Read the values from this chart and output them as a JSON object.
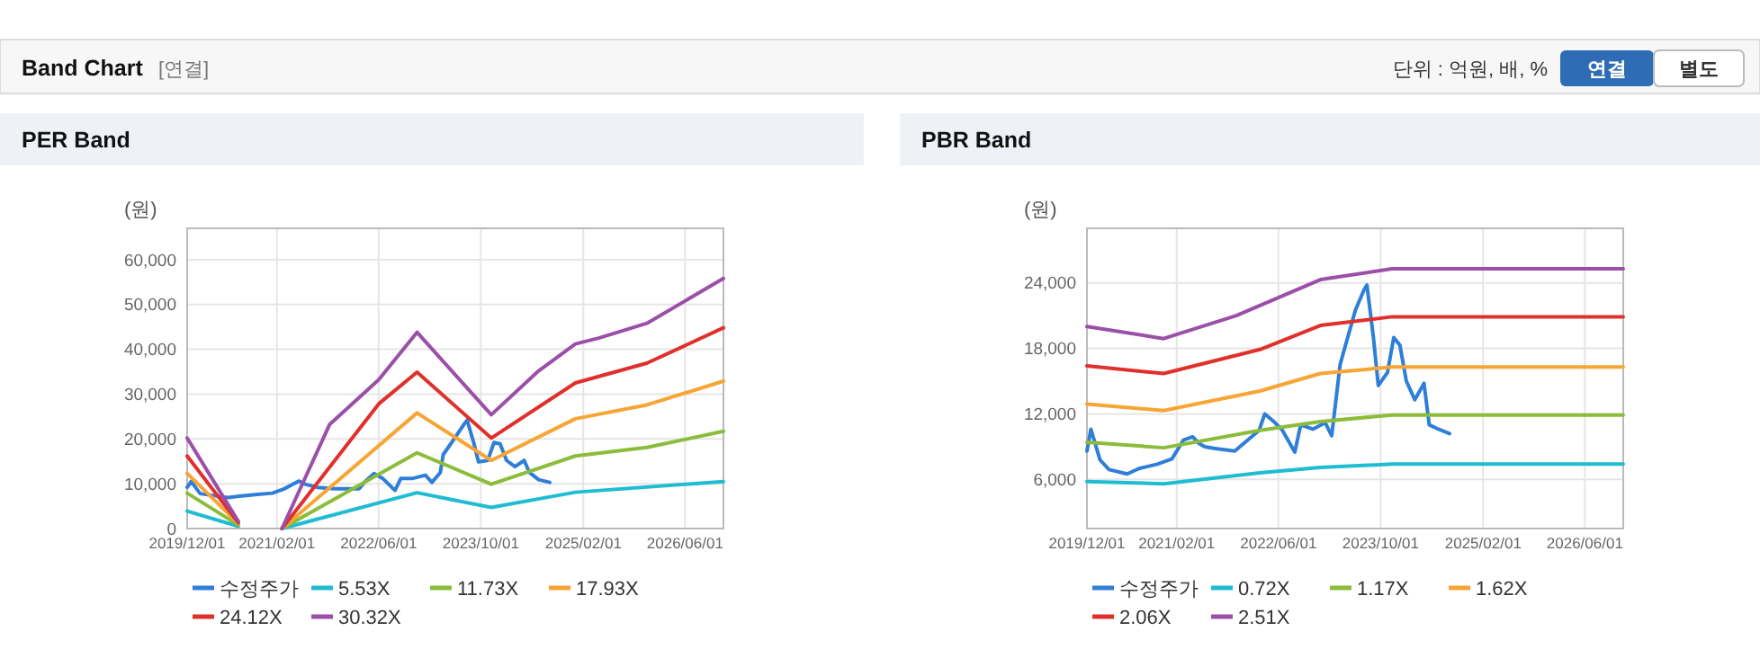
{
  "chart_data": [
    {
      "type": "line",
      "title": "PER Band",
      "ylabel": "(원)",
      "annotations": [
        "Band Chart",
        "[연결]",
        "단위 : 억원, 배, %",
        "연결",
        "별도"
      ],
      "grid": true,
      "legend": "bottom",
      "marker": "none",
      "line_style": "solid",
      "xlim": [
        "2019-12-01",
        "2026-12-01"
      ],
      "ylim": [
        0,
        67000
      ],
      "xticks": [
        {
          "value": "2019-12-01",
          "label": "2019/12/01"
        },
        {
          "value": "2021-02-01",
          "label": "2021/02/01"
        },
        {
          "value": "2022-06-01",
          "label": "2022/06/01"
        },
        {
          "value": "2023-10-01",
          "label": "2023/10/01"
        },
        {
          "value": "2025-02-01",
          "label": "2025/02/01"
        },
        {
          "value": "2026-06-01",
          "label": "2026/06/01"
        }
      ],
      "yticks": [
        {
          "value": 0,
          "label": "0"
        },
        {
          "value": 10000,
          "label": "10,000"
        },
        {
          "value": 20000,
          "label": "20,000"
        },
        {
          "value": 30000,
          "label": "30,000"
        },
        {
          "value": 40000,
          "label": "40,000"
        },
        {
          "value": 50000,
          "label": "50,000"
        },
        {
          "value": 60000,
          "label": "60,000"
        }
      ],
      "series": [
        {
          "name": "수정주가",
          "color": "#2f7ed8",
          "x": [
            "2019-12-01",
            "2019-12-20",
            "2020-02-01",
            "2020-03-15",
            "2020-06-10",
            "2020-08-05",
            "2020-11-01",
            "2021-01-10",
            "2021-03-05",
            "2021-04-18",
            "2021-05-18",
            "2021-06-15",
            "2021-08-12",
            "2021-11-05",
            "2022-03-01",
            "2022-03-28",
            "2022-05-10",
            "2022-06-20",
            "2022-08-18",
            "2022-09-15",
            "2022-11-12",
            "2023-01-10",
            "2023-02-10",
            "2023-03-22",
            "2023-04-05",
            "2023-06-03",
            "2023-07-15",
            "2023-07-28",
            "2023-08-28",
            "2023-09-20",
            "2023-11-03",
            "2023-12-03",
            "2024-01-01",
            "2024-02-01",
            "2024-03-12",
            "2024-04-25",
            "2024-05-20",
            "2024-07-03",
            "2024-08-25"
          ],
          "values": [
            9200,
            10500,
            7800,
            7500,
            6900,
            7200,
            7600,
            7900,
            8800,
            9900,
            10600,
            9900,
            9200,
            8900,
            8900,
            10500,
            12300,
            11200,
            8500,
            11200,
            11200,
            11900,
            10300,
            12500,
            16500,
            20500,
            23400,
            24200,
            19200,
            14900,
            15200,
            19200,
            18900,
            15200,
            13800,
            15200,
            12500,
            10900,
            10300
          ]
        },
        {
          "name": "5.53X",
          "color": "#1fbcd2",
          "x": [
            "2019-12-01",
            "2020-08-01",
            "2020-12-01",
            "2021-02-25",
            "2022-12-01",
            "2023-11-20",
            "2024-12-25",
            "2026-12-01"
          ],
          "values": [
            3900,
            500,
            null,
            0,
            8000,
            4700,
            8100,
            10500
          ]
        },
        {
          "name": "11.73X",
          "color": "#8bbc3a",
          "x": [
            "2019-12-01",
            "2020-08-01",
            "2020-12-01",
            "2021-02-25",
            "2022-12-01",
            "2023-11-20",
            "2024-12-25",
            "2025-12-01",
            "2026-12-01"
          ],
          "values": [
            7900,
            800,
            null,
            0,
            16900,
            9900,
            16200,
            18100,
            21700
          ]
        },
        {
          "name": "17.93X",
          "color": "#f7a534",
          "x": [
            "2019-12-01",
            "2020-08-01",
            "2020-12-01",
            "2021-02-25",
            "2022-12-01",
            "2023-11-20",
            "2024-12-25",
            "2025-12-01",
            "2026-12-01"
          ],
          "values": [
            12300,
            1100,
            null,
            0,
            25800,
            15200,
            24500,
            27600,
            32900
          ]
        },
        {
          "name": "24.12X",
          "color": "#e0302c",
          "x": [
            "2019-12-01",
            "2020-08-01",
            "2020-12-01",
            "2021-02-25",
            "2022-06-01",
            "2022-12-01",
            "2023-11-20",
            "2024-12-25",
            "2025-12-01",
            "2026-12-01"
          ],
          "values": [
            16200,
            1300,
            null,
            0,
            27800,
            34900,
            20200,
            32500,
            36900,
            44800
          ]
        },
        {
          "name": "30.32X",
          "color": "#9b4fa8",
          "x": [
            "2019-12-01",
            "2020-08-01",
            "2020-12-01",
            "2021-02-25",
            "2021-10-10",
            "2022-06-01",
            "2022-12-01",
            "2023-11-20",
            "2024-07-03",
            "2024-12-25",
            "2025-04-15",
            "2025-12-01",
            "2026-12-01"
          ],
          "values": [
            20200,
            1600,
            null,
            0,
            23200,
            33200,
            43800,
            25400,
            35200,
            41200,
            42500,
            45800,
            55800
          ]
        }
      ]
    },
    {
      "type": "line",
      "title": "PBR Band",
      "ylabel": "(원)",
      "grid": true,
      "legend": "bottom",
      "marker": "none",
      "line_style": "solid",
      "xlim": [
        "2019-12-01",
        "2026-12-01"
      ],
      "ylim": [
        1500,
        29000
      ],
      "xticks": [
        {
          "value": "2019-12-01",
          "label": "2019/12/01"
        },
        {
          "value": "2021-02-01",
          "label": "2021/02/01"
        },
        {
          "value": "2022-06-01",
          "label": "2022/06/01"
        },
        {
          "value": "2023-10-01",
          "label": "2023/10/01"
        },
        {
          "value": "2025-02-01",
          "label": "2025/02/01"
        },
        {
          "value": "2026-06-01",
          "label": "2026/06/01"
        }
      ],
      "yticks": [
        {
          "value": 6000,
          "label": "6,000"
        },
        {
          "value": 12000,
          "label": "12,000"
        },
        {
          "value": 18000,
          "label": "18,000"
        },
        {
          "value": 24000,
          "label": "24,000"
        }
      ],
      "series": [
        {
          "name": "수정주가",
          "color": "#2f7ed8",
          "x": [
            "2019-12-01",
            "2019-12-20",
            "2020-02-01",
            "2020-03-15",
            "2020-06-10",
            "2020-08-05",
            "2020-11-01",
            "2021-01-10",
            "2021-03-05",
            "2021-04-18",
            "2021-05-18",
            "2021-06-15",
            "2021-08-12",
            "2021-11-05",
            "2022-03-01",
            "2022-03-28",
            "2022-05-10",
            "2022-06-20",
            "2022-08-18",
            "2022-09-15",
            "2022-11-12",
            "2023-01-10",
            "2023-02-10",
            "2023-03-22",
            "2023-04-05",
            "2023-06-03",
            "2023-07-15",
            "2023-07-28",
            "2023-08-28",
            "2023-09-20",
            "2023-11-03",
            "2023-12-03",
            "2024-01-01",
            "2024-02-01",
            "2024-03-12",
            "2024-04-25",
            "2024-05-20",
            "2024-07-03",
            "2024-08-25"
          ],
          "values": [
            8600,
            10600,
            7800,
            6900,
            6500,
            7000,
            7400,
            7900,
            9600,
            9900,
            9300,
            9000,
            8800,
            8600,
            10500,
            12000,
            11300,
            10500,
            8500,
            11000,
            10600,
            11200,
            10000,
            16500,
            17500,
            21500,
            23400,
            23800,
            19000,
            14600,
            15800,
            19000,
            18300,
            15000,
            13300,
            14800,
            11000,
            10600,
            10200
          ]
        },
        {
          "name": "0.72X",
          "color": "#1fbcd2",
          "x": [
            "2019-12-01",
            "2020-12-01",
            "2022-03-05",
            "2022-12-18",
            "2023-11-25",
            "2026-12-01"
          ],
          "values": [
            5800,
            5600,
            6600,
            7100,
            7400,
            7400
          ]
        },
        {
          "name": "1.17X",
          "color": "#8bbc3a",
          "x": [
            "2019-12-01",
            "2020-12-01",
            "2022-03-05",
            "2022-12-18",
            "2023-11-25",
            "2026-12-01"
          ],
          "values": [
            9400,
            8900,
            10500,
            11300,
            11900,
            11900
          ]
        },
        {
          "name": "1.62X",
          "color": "#f7a534",
          "x": [
            "2019-12-01",
            "2020-12-01",
            "2022-03-05",
            "2022-12-18",
            "2023-11-25",
            "2026-12-01"
          ],
          "values": [
            12900,
            12300,
            14100,
            15700,
            16300,
            16300
          ]
        },
        {
          "name": "2.06X",
          "color": "#e0302c",
          "x": [
            "2019-12-01",
            "2020-12-01",
            "2022-03-05",
            "2022-12-18",
            "2023-11-25",
            "2026-12-01"
          ],
          "values": [
            16400,
            15700,
            17900,
            20100,
            20900,
            20900
          ]
        },
        {
          "name": "2.51X",
          "color": "#9b4fa8",
          "x": [
            "2019-12-01",
            "2020-12-01",
            "2021-11-12",
            "2022-12-18",
            "2023-11-25",
            "2026-12-01"
          ],
          "values": [
            20000,
            18900,
            21000,
            24300,
            25300,
            25300
          ]
        }
      ]
    }
  ]
}
